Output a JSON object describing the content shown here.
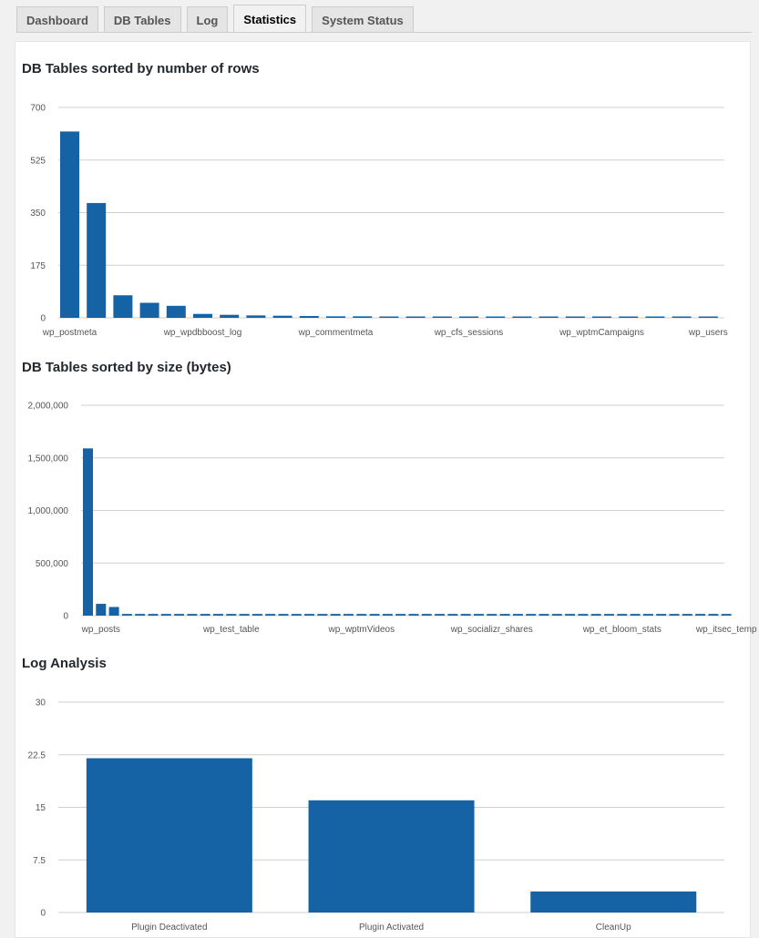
{
  "tabs": [
    {
      "label": "Dashboard",
      "active": false
    },
    {
      "label": "DB Tables",
      "active": false
    },
    {
      "label": "Log",
      "active": false
    },
    {
      "label": "Statistics",
      "active": true
    },
    {
      "label": "System Status",
      "active": false
    }
  ],
  "bar_color": "#1562a4",
  "grid_color": "#cfcfcf",
  "chart_data": [
    {
      "type": "bar",
      "title": "DB Tables sorted by number of rows",
      "ylim": [
        0,
        700
      ],
      "yticks": [
        "700",
        "525",
        "350",
        "175",
        "0"
      ],
      "ytick_values": [
        700,
        525,
        350,
        175,
        0
      ],
      "values": [
        620,
        382,
        75,
        50,
        40,
        13,
        10,
        8,
        7,
        6,
        5,
        5,
        4,
        4,
        3,
        3,
        3,
        3,
        2,
        2,
        2,
        2,
        2,
        2,
        2
      ],
      "x_labels": [
        {
          "index": 0,
          "label": "wp_postmeta"
        },
        {
          "index": 5,
          "label": "wp_wpdbboost_log"
        },
        {
          "index": 10,
          "label": "wp_commentmeta"
        },
        {
          "index": 15,
          "label": "wp_cfs_sessions"
        },
        {
          "index": 20,
          "label": "wp_wptmCampaigns"
        },
        {
          "index": 24,
          "label": "wp_users"
        }
      ]
    },
    {
      "type": "bar",
      "title": "DB Tables sorted by size (bytes)",
      "ylim": [
        0,
        2000000
      ],
      "yticks": [
        "2,000,000",
        "1,500,000",
        "1,000,000",
        "500,000",
        "0"
      ],
      "ytick_values": [
        2000000,
        1500000,
        1000000,
        500000,
        0
      ],
      "values": [
        1590000,
        112000,
        82000,
        16000,
        16000,
        16000,
        16000,
        16000,
        16000,
        16000,
        16000,
        16000,
        16000,
        16000,
        16000,
        16000,
        16000,
        16000,
        16000,
        16000,
        16000,
        16000,
        16000,
        16000,
        16000,
        16000,
        16000,
        16000,
        16000,
        16000,
        16000,
        16000,
        16000,
        16000,
        16000,
        16000,
        16000,
        16000,
        16000,
        16000,
        16000,
        16000,
        16000,
        16000,
        16000,
        16000,
        16000,
        16000,
        16000,
        16000
      ],
      "x_labels": [
        {
          "index": 1,
          "label": "wp_posts"
        },
        {
          "index": 11,
          "label": "wp_test_table"
        },
        {
          "index": 21,
          "label": "wp_wptmVideos"
        },
        {
          "index": 31,
          "label": "wp_socializr_shares"
        },
        {
          "index": 41,
          "label": "wp_et_bloom_stats"
        },
        {
          "index": 49,
          "label": "wp_itsec_temp"
        }
      ]
    },
    {
      "type": "bar",
      "title": "Log Analysis",
      "ylim": [
        0,
        30
      ],
      "yticks": [
        "30",
        "22.5",
        "15",
        "7.5",
        "0"
      ],
      "ytick_values": [
        30,
        22.5,
        15,
        7.5,
        0
      ],
      "categories": [
        "Plugin Deactivated",
        "Plugin Activated",
        "CleanUp"
      ],
      "values": [
        22,
        16,
        3
      ]
    }
  ]
}
